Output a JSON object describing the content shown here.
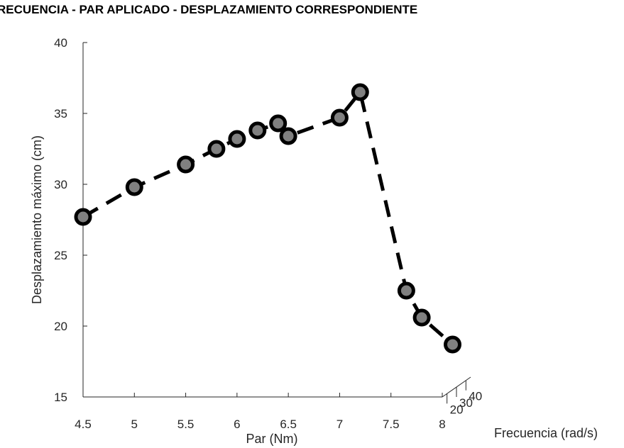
{
  "chart_data": {
    "type": "line",
    "title": "RECUENCIA - PAR APLICADO - DESPLAZAMIENTO CORRESPONDIENTE",
    "xlabel": "Par (Nm)",
    "ylabel": "Desplazamiento máximo (cm)",
    "zlabel": "Frecuencia (rad/s)",
    "xlim": [
      4.5,
      8
    ],
    "ylim": [
      15,
      40
    ],
    "x_ticks": [
      "4.5",
      "5",
      "5.5",
      "6",
      "6.5",
      "7",
      "7.5",
      "8"
    ],
    "y_ticks": [
      "15",
      "20",
      "25",
      "30",
      "35",
      "40"
    ],
    "z_ticks": [
      "20",
      "30",
      "40"
    ],
    "grid": false,
    "line_style": "dashed",
    "marker": "circle",
    "colors": {
      "line": "#000000",
      "marker_fill": "#808080",
      "marker_edge": "#000000",
      "axis": "#262626"
    },
    "series": [
      {
        "x": [
          4.5,
          5.0,
          5.5,
          5.8,
          6.0,
          6.2,
          6.4,
          6.5,
          7.0,
          7.2,
          7.65,
          7.8,
          8.1
        ],
        "y": [
          27.7,
          29.8,
          31.4,
          32.5,
          33.2,
          33.8,
          34.3,
          33.4,
          34.7,
          36.5,
          22.5,
          20.6,
          18.7
        ]
      }
    ]
  }
}
